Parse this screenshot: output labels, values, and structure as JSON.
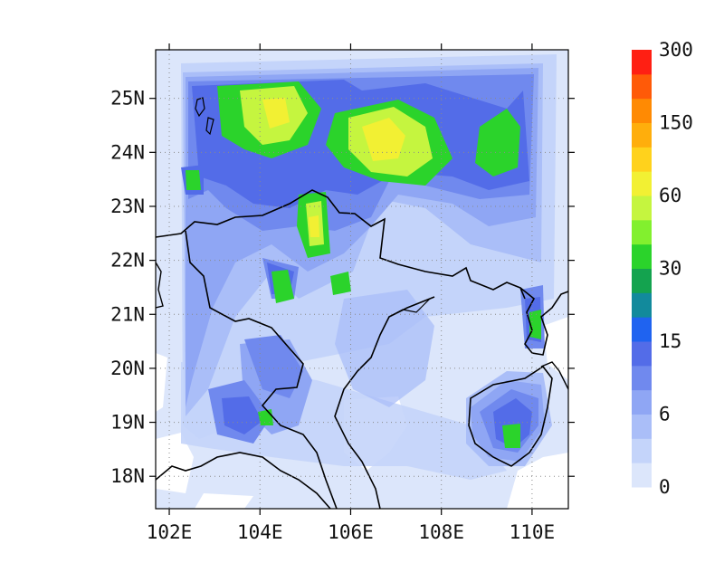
{
  "map": {
    "lon_range": [
      101.7,
      110.8
    ],
    "lat_range": [
      17.4,
      25.9
    ],
    "x_ticks": [
      {
        "value": 102,
        "label": "102E"
      },
      {
        "value": 104,
        "label": "104E"
      },
      {
        "value": 106,
        "label": "106E"
      },
      {
        "value": 108,
        "label": "108E"
      },
      {
        "value": 110,
        "label": "110E"
      }
    ],
    "y_ticks": [
      {
        "value": 18,
        "label": "18N"
      },
      {
        "value": 19,
        "label": "19N"
      },
      {
        "value": 20,
        "label": "20N"
      },
      {
        "value": 21,
        "label": "21N"
      },
      {
        "value": 22,
        "label": "22N"
      },
      {
        "value": 23,
        "label": "23N"
      },
      {
        "value": 24,
        "label": "24N"
      },
      {
        "value": 25,
        "label": "25N"
      }
    ],
    "gridlines": true,
    "grid_style": "dotted"
  },
  "colorbar": {
    "labels": [
      "0",
      "6",
      "15",
      "30",
      "60",
      "150",
      "300"
    ],
    "colors": [
      "#dce6fb",
      "#c4d4fa",
      "#aabef8",
      "#8fa6f4",
      "#7089ee",
      "#536ce8",
      "#1f63f0",
      "#128a9c",
      "#14a34f",
      "#2bd32b",
      "#82f02e",
      "#c5f53f",
      "#f2f033",
      "#ffd21c",
      "#ffae0c",
      "#ff8a03",
      "#ff5a08",
      "#ff1f13"
    ]
  }
}
